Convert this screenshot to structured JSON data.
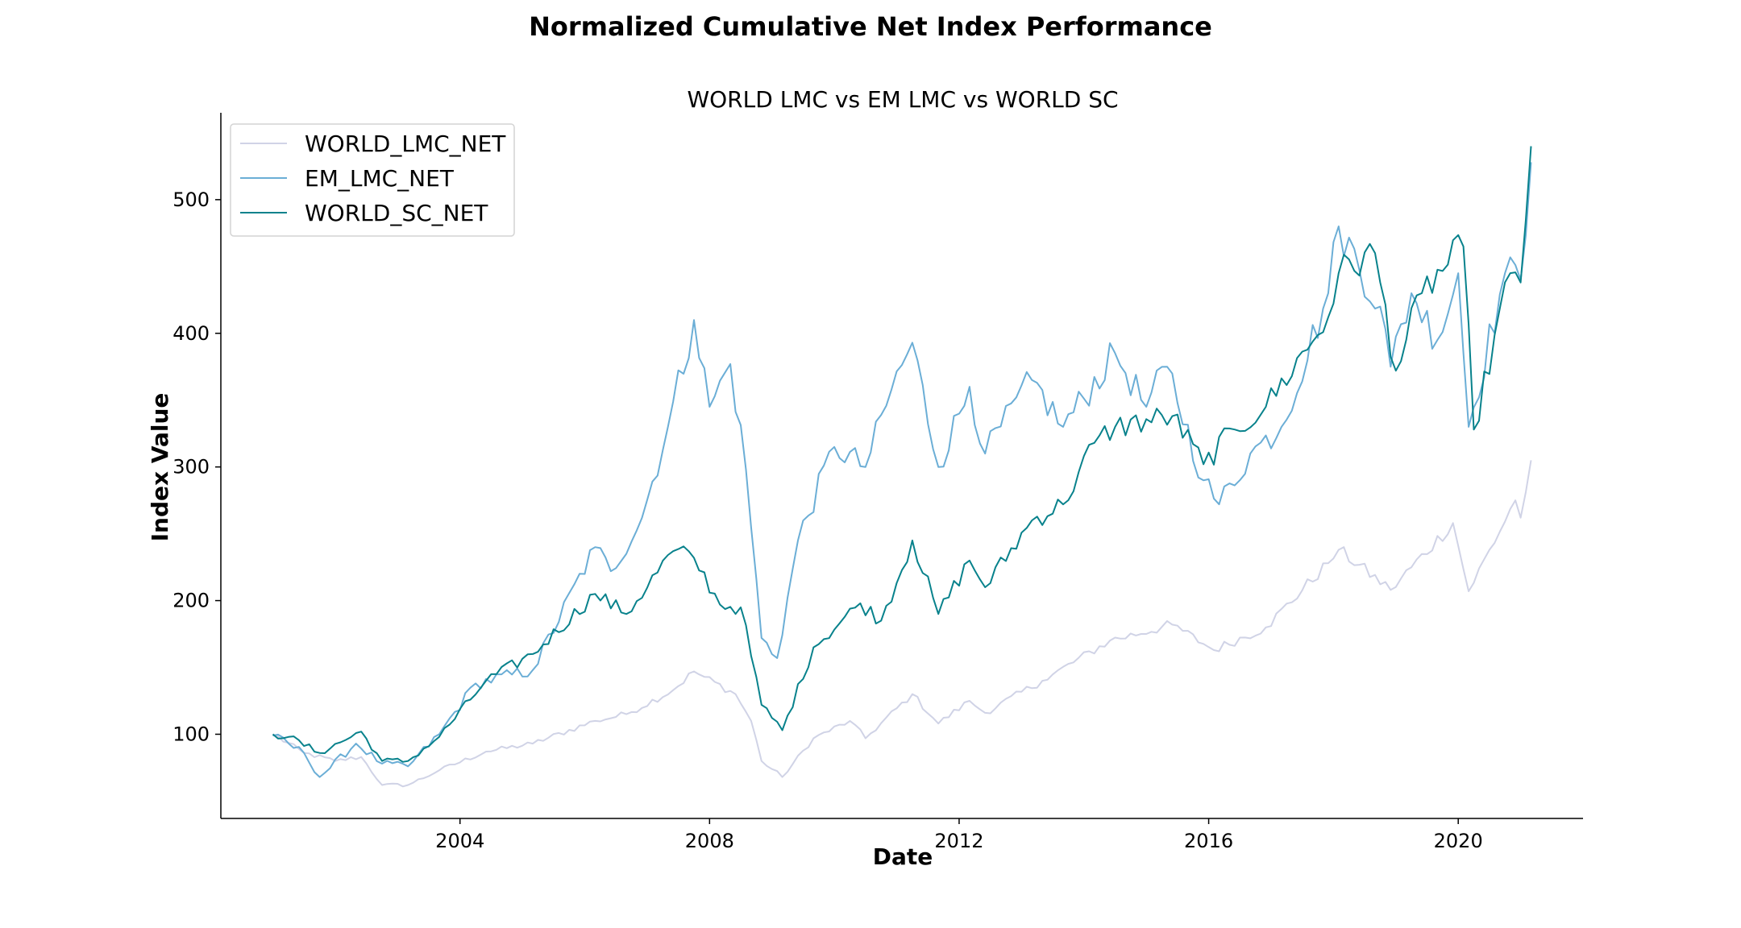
{
  "figure_title": "Normalized Cumulative Net Index Performance",
  "chart_data": {
    "type": "line",
    "title": "WORLD LMC vs EM LMC vs WORLD SC",
    "xlabel": "Date",
    "ylabel": "Index Value",
    "x_ticks": [
      "2004",
      "2008",
      "2012",
      "2016",
      "2020"
    ],
    "y_ticks": [
      100,
      200,
      300,
      400,
      500
    ],
    "xlim": [
      "2000-03",
      "2022-01"
    ],
    "ylim": [
      37,
      565
    ],
    "grid": false,
    "legend_position": "top-left",
    "series": [
      {
        "name": "WORLD_LMC_NET",
        "color": "#d0d3e6",
        "points": [
          [
            "2001-01",
            100
          ],
          [
            "2001-07",
            86
          ],
          [
            "2002-01",
            80
          ],
          [
            "2002-06",
            83
          ],
          [
            "2002-10",
            62
          ],
          [
            "2003-03",
            62
          ],
          [
            "2003-09",
            73
          ],
          [
            "2004-06",
            87
          ],
          [
            "2005-03",
            93
          ],
          [
            "2006-03",
            110
          ],
          [
            "2006-09",
            115
          ],
          [
            "2007-06",
            133
          ],
          [
            "2007-10",
            147
          ],
          [
            "2008-06",
            130
          ],
          [
            "2008-09",
            110
          ],
          [
            "2008-11",
            80
          ],
          [
            "2009-03",
            68
          ],
          [
            "2009-09",
            97
          ],
          [
            "2010-04",
            110
          ],
          [
            "2010-07",
            97
          ],
          [
            "2011-04",
            130
          ],
          [
            "2011-09",
            108
          ],
          [
            "2012-03",
            125
          ],
          [
            "2012-06",
            116
          ],
          [
            "2013-05",
            140
          ],
          [
            "2014-06",
            170
          ],
          [
            "2015-06",
            182
          ],
          [
            "2016-02",
            163
          ],
          [
            "2016-12",
            180
          ],
          [
            "2017-12",
            228
          ],
          [
            "2018-02",
            238
          ],
          [
            "2018-12",
            208
          ],
          [
            "2019-12",
            258
          ],
          [
            "2020-03",
            207
          ],
          [
            "2020-12",
            275
          ],
          [
            "2021-01",
            262
          ],
          [
            "2021-03",
            305
          ]
        ]
      },
      {
        "name": "EM_LMC_NET",
        "color": "#6baed6",
        "points": [
          [
            "2001-01",
            99
          ],
          [
            "2001-07",
            86
          ],
          [
            "2001-10",
            68
          ],
          [
            "2002-05",
            93
          ],
          [
            "2002-10",
            78
          ],
          [
            "2003-03",
            76
          ],
          [
            "2003-09",
            100
          ],
          [
            "2004-04",
            138
          ],
          [
            "2005-03",
            148
          ],
          [
            "2006-03",
            240
          ],
          [
            "2006-06",
            222
          ],
          [
            "2006-12",
            262
          ],
          [
            "2007-05",
            330
          ],
          [
            "2007-10",
            410
          ],
          [
            "2008-01",
            345
          ],
          [
            "2008-05",
            377
          ],
          [
            "2008-08",
            298
          ],
          [
            "2008-11",
            172
          ],
          [
            "2009-02",
            157
          ],
          [
            "2009-06",
            245
          ],
          [
            "2010-01",
            315
          ],
          [
            "2010-07",
            300
          ],
          [
            "2010-12",
            358
          ],
          [
            "2011-04",
            393
          ],
          [
            "2011-09",
            300
          ],
          [
            "2012-03",
            360
          ],
          [
            "2012-06",
            310
          ],
          [
            "2013-03",
            365
          ],
          [
            "2013-09",
            330
          ],
          [
            "2014-07",
            385
          ],
          [
            "2015-01",
            345
          ],
          [
            "2015-05",
            375
          ],
          [
            "2015-12",
            290
          ],
          [
            "2016-03",
            272
          ],
          [
            "2016-09",
            310
          ],
          [
            "2017-03",
            330
          ],
          [
            "2017-12",
            430
          ],
          [
            "2018-02",
            480
          ],
          [
            "2018-10",
            420
          ],
          [
            "2018-12",
            375
          ],
          [
            "2019-04",
            430
          ],
          [
            "2019-09",
            395
          ],
          [
            "2020-01",
            445
          ],
          [
            "2020-03",
            330
          ],
          [
            "2020-10",
            445
          ],
          [
            "2021-01",
            440
          ],
          [
            "2021-03",
            528
          ]
        ]
      },
      {
        "name": "WORLD_SC_NET",
        "color": "#08828c",
        "points": [
          [
            "2001-01",
            100
          ],
          [
            "2001-04",
            98
          ],
          [
            "2001-10",
            86
          ],
          [
            "2002-06",
            102
          ],
          [
            "2002-10",
            80
          ],
          [
            "2003-03",
            80
          ],
          [
            "2003-09",
            98
          ],
          [
            "2004-06",
            140
          ],
          [
            "2005-03",
            160
          ],
          [
            "2006-03",
            205
          ],
          [
            "2006-09",
            190
          ],
          [
            "2007-06",
            237
          ],
          [
            "2007-10",
            232
          ],
          [
            "2008-03",
            197
          ],
          [
            "2008-07",
            195
          ],
          [
            "2008-11",
            122
          ],
          [
            "2009-03",
            103
          ],
          [
            "2009-09",
            165
          ],
          [
            "2010-06",
            198
          ],
          [
            "2010-10",
            185
          ],
          [
            "2011-04",
            245
          ],
          [
            "2011-09",
            190
          ],
          [
            "2012-03",
            230
          ],
          [
            "2012-06",
            210
          ],
          [
            "2013-03",
            260
          ],
          [
            "2013-09",
            272
          ],
          [
            "2014-03",
            318
          ],
          [
            "2014-07",
            330
          ],
          [
            "2015-06",
            338
          ],
          [
            "2015-12",
            302
          ],
          [
            "2016-06",
            328
          ],
          [
            "2016-12",
            345
          ],
          [
            "2017-12",
            412
          ],
          [
            "2018-02",
            445
          ],
          [
            "2018-09",
            460
          ],
          [
            "2019-01",
            372
          ],
          [
            "2019-06",
            430
          ],
          [
            "2020-02",
            465
          ],
          [
            "2020-04",
            328
          ],
          [
            "2020-11",
            445
          ],
          [
            "2021-01",
            438
          ],
          [
            "2021-03",
            540
          ]
        ]
      }
    ]
  }
}
